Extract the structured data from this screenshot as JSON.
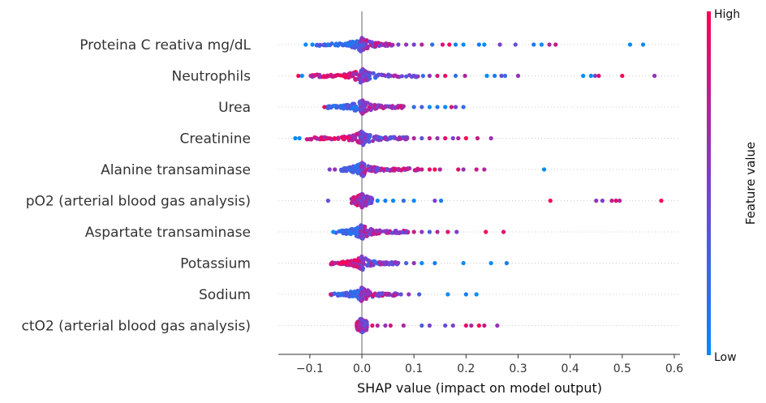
{
  "chart_data": {
    "type": "scatter",
    "subtype": "shap-beeswarm",
    "title": "",
    "xlabel": "SHAP value (impact on model output)",
    "xlim": [
      -0.16,
      0.61
    ],
    "xticks": [
      -0.1,
      0.0,
      0.1,
      0.2,
      0.3,
      0.4,
      0.5,
      0.6
    ],
    "xtick_labels": [
      "−0.1",
      "0.0",
      "0.1",
      "0.2",
      "0.3",
      "0.4",
      "0.5",
      "0.6"
    ],
    "colorbar": {
      "title": "Feature value",
      "high_label": "High",
      "low_label": "Low",
      "low_color": "#008bfb",
      "mid_color": "#7a3fd1",
      "high_color": "#ff0052"
    },
    "features": [
      {
        "name": "Proteina C reativa mg/dL",
        "dense": [
          -0.09,
          0.06
        ],
        "points": [
          {
            "x": -0.108,
            "c": 0.0
          },
          {
            "x": -0.095,
            "c": 0.0
          },
          {
            "x": 0.07,
            "c": 0.5
          },
          {
            "x": 0.085,
            "c": 0.6
          },
          {
            "x": 0.1,
            "c": 0.5
          },
          {
            "x": 0.115,
            "c": 0.7
          },
          {
            "x": 0.135,
            "c": 0.2
          },
          {
            "x": 0.155,
            "c": 0.85
          },
          {
            "x": 0.168,
            "c": 0.95
          },
          {
            "x": 0.18,
            "c": 0.1
          },
          {
            "x": 0.195,
            "c": 0.0
          },
          {
            "x": 0.225,
            "c": 0.1
          },
          {
            "x": 0.235,
            "c": 0.0
          },
          {
            "x": 0.265,
            "c": 0.5
          },
          {
            "x": 0.295,
            "c": 0.4
          },
          {
            "x": 0.33,
            "c": 0.1
          },
          {
            "x": 0.345,
            "c": 0.0
          },
          {
            "x": 0.36,
            "c": 0.7
          },
          {
            "x": 0.372,
            "c": 0.8
          },
          {
            "x": 0.515,
            "c": 0.0
          },
          {
            "x": 0.54,
            "c": 0.0
          }
        ]
      },
      {
        "name": "Neutrophils",
        "dense": [
          -0.1,
          0.12
        ],
        "points": [
          {
            "x": -0.122,
            "c": 1.0
          },
          {
            "x": -0.115,
            "c": 0.0
          },
          {
            "x": 0.13,
            "c": 0.6
          },
          {
            "x": 0.145,
            "c": 0.8
          },
          {
            "x": 0.16,
            "c": 0.9
          },
          {
            "x": 0.18,
            "c": 0.2
          },
          {
            "x": 0.198,
            "c": 0.7
          },
          {
            "x": 0.24,
            "c": 0.0
          },
          {
            "x": 0.255,
            "c": 0.1
          },
          {
            "x": 0.268,
            "c": 0.4
          },
          {
            "x": 0.275,
            "c": 0.2
          },
          {
            "x": 0.3,
            "c": 0.6
          },
          {
            "x": 0.425,
            "c": 0.0
          },
          {
            "x": 0.44,
            "c": 0.0
          },
          {
            "x": 0.448,
            "c": 0.5
          },
          {
            "x": 0.455,
            "c": 0.9
          },
          {
            "x": 0.5,
            "c": 1.0
          },
          {
            "x": 0.562,
            "c": 0.6
          }
        ]
      },
      {
        "name": "Urea",
        "dense": [
          -0.07,
          0.08
        ],
        "points": [
          {
            "x": -0.072,
            "c": 0.9
          },
          {
            "x": 0.1,
            "c": 0.2
          },
          {
            "x": 0.115,
            "c": 0.3
          },
          {
            "x": 0.13,
            "c": 0.0
          },
          {
            "x": 0.145,
            "c": 0.1
          },
          {
            "x": 0.16,
            "c": 0.0
          },
          {
            "x": 0.172,
            "c": 0.8
          },
          {
            "x": 0.18,
            "c": 0.5
          },
          {
            "x": 0.195,
            "c": 0.2
          }
        ]
      },
      {
        "name": "Creatinine",
        "dense": [
          -0.11,
          0.09
        ],
        "points": [
          {
            "x": -0.128,
            "c": 0.0
          },
          {
            "x": -0.12,
            "c": 0.0
          },
          {
            "x": 0.1,
            "c": 0.7
          },
          {
            "x": 0.115,
            "c": 0.4
          },
          {
            "x": 0.13,
            "c": 0.8
          },
          {
            "x": 0.145,
            "c": 0.6
          },
          {
            "x": 0.16,
            "c": 0.9
          },
          {
            "x": 0.175,
            "c": 0.5
          },
          {
            "x": 0.185,
            "c": 0.7
          },
          {
            "x": 0.2,
            "c": 1.0
          },
          {
            "x": 0.222,
            "c": 0.8
          },
          {
            "x": 0.248,
            "c": 0.6
          }
        ]
      },
      {
        "name": "Alanine transaminase",
        "dense": [
          -0.04,
          0.11
        ],
        "points": [
          {
            "x": -0.062,
            "c": 0.5
          },
          {
            "x": -0.052,
            "c": 0.6
          },
          {
            "x": 0.115,
            "c": 0.8
          },
          {
            "x": 0.13,
            "c": 0.9
          },
          {
            "x": 0.14,
            "c": 1.0
          },
          {
            "x": 0.15,
            "c": 0.7
          },
          {
            "x": 0.185,
            "c": 0.9
          },
          {
            "x": 0.195,
            "c": 0.6
          },
          {
            "x": 0.22,
            "c": 0.8
          },
          {
            "x": 0.235,
            "c": 0.7
          },
          {
            "x": 0.35,
            "c": 0.0
          }
        ]
      },
      {
        "name": "pO2 (arterial blood gas analysis)",
        "dense": [
          -0.02,
          0.02
        ],
        "points": [
          {
            "x": -0.065,
            "c": 0.4
          },
          {
            "x": 0.03,
            "c": 0.0
          },
          {
            "x": 0.045,
            "c": 0.1
          },
          {
            "x": 0.06,
            "c": 0.0
          },
          {
            "x": 0.08,
            "c": 0.2
          },
          {
            "x": 0.1,
            "c": 0.0
          },
          {
            "x": 0.14,
            "c": 0.5
          },
          {
            "x": 0.152,
            "c": 0.1
          },
          {
            "x": 0.362,
            "c": 1.0
          },
          {
            "x": 0.45,
            "c": 0.6
          },
          {
            "x": 0.462,
            "c": 0.5
          },
          {
            "x": 0.48,
            "c": 0.8
          },
          {
            "x": 0.488,
            "c": 0.9
          },
          {
            "x": 0.495,
            "c": 0.7
          },
          {
            "x": 0.575,
            "c": 1.0
          }
        ]
      },
      {
        "name": "Aspartate transaminase",
        "dense": [
          -0.05,
          0.09
        ],
        "points": [
          {
            "x": -0.055,
            "c": 0.0
          },
          {
            "x": 0.1,
            "c": 0.8
          },
          {
            "x": 0.115,
            "c": 0.6
          },
          {
            "x": 0.13,
            "c": 0.3
          },
          {
            "x": 0.145,
            "c": 0.7
          },
          {
            "x": 0.165,
            "c": 0.9
          },
          {
            "x": 0.182,
            "c": 0.5
          },
          {
            "x": 0.238,
            "c": 1.0
          },
          {
            "x": 0.272,
            "c": 0.9
          }
        ]
      },
      {
        "name": "Potassium",
        "dense": [
          -0.06,
          0.07
        ],
        "points": [
          {
            "x": -0.058,
            "c": 0.9
          },
          {
            "x": 0.085,
            "c": 0.3
          },
          {
            "x": 0.1,
            "c": 0.6
          },
          {
            "x": 0.115,
            "c": 0.0
          },
          {
            "x": 0.14,
            "c": 0.1
          },
          {
            "x": 0.195,
            "c": 0.0
          },
          {
            "x": 0.248,
            "c": 0.0
          },
          {
            "x": 0.278,
            "c": 0.1
          }
        ]
      },
      {
        "name": "Sodium",
        "dense": [
          -0.06,
          0.07
        ],
        "points": [
          {
            "x": -0.06,
            "c": 0.8
          },
          {
            "x": 0.075,
            "c": 0.4
          },
          {
            "x": 0.09,
            "c": 0.6
          },
          {
            "x": 0.11,
            "c": 0.3
          },
          {
            "x": 0.165,
            "c": 0.0
          },
          {
            "x": 0.2,
            "c": 0.1
          },
          {
            "x": 0.22,
            "c": 0.0
          }
        ]
      },
      {
        "name": "ctO2 (arterial blood gas analysis)",
        "dense": [
          -0.01,
          0.01
        ],
        "points": [
          {
            "x": -0.01,
            "c": 0.8
          },
          {
            "x": 0.02,
            "c": 0.9
          },
          {
            "x": 0.03,
            "c": 0.7
          },
          {
            "x": 0.045,
            "c": 0.6
          },
          {
            "x": 0.055,
            "c": 0.8
          },
          {
            "x": 0.08,
            "c": 0.7
          },
          {
            "x": 0.115,
            "c": 0.3
          },
          {
            "x": 0.13,
            "c": 0.5
          },
          {
            "x": 0.16,
            "c": 0.4
          },
          {
            "x": 0.175,
            "c": 0.5
          },
          {
            "x": 0.2,
            "c": 0.9
          },
          {
            "x": 0.21,
            "c": 0.7
          },
          {
            "x": 0.225,
            "c": 1.0
          },
          {
            "x": 0.235,
            "c": 0.8
          },
          {
            "x": 0.26,
            "c": 0.6
          }
        ]
      }
    ]
  }
}
